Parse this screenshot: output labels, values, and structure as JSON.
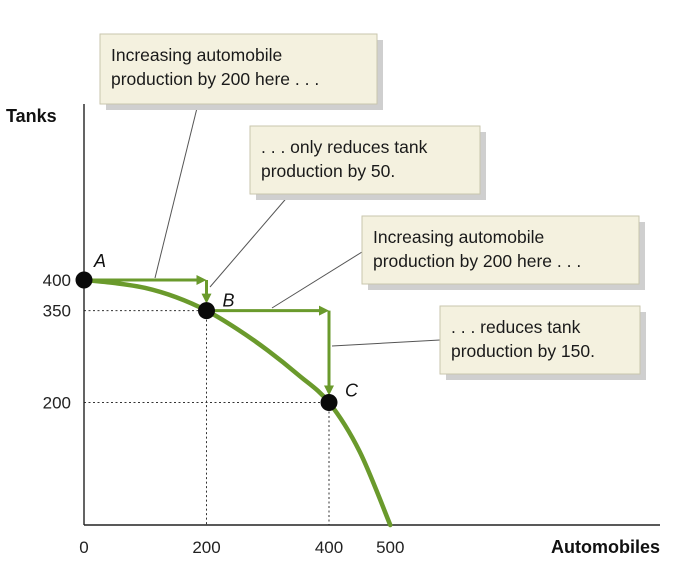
{
  "chart_data": {
    "type": "line",
    "xlabel": "Automobiles",
    "ylabel": "Tanks",
    "xlim": [
      0,
      520
    ],
    "ylim": [
      0,
      400
    ],
    "x_ticks": [
      {
        "value": 0,
        "label": "0"
      },
      {
        "value": 200,
        "label": "200"
      },
      {
        "value": 400,
        "label": "400"
      },
      {
        "value": 500,
        "label": "500"
      }
    ],
    "y_ticks": [
      {
        "value": 400,
        "label": "400"
      },
      {
        "value": 350,
        "label": "350"
      },
      {
        "value": 200,
        "label": "200"
      }
    ],
    "curve": {
      "color": "#6a9a2c",
      "x": [
        0,
        50,
        100,
        150,
        200,
        250,
        300,
        350,
        400,
        450,
        500
      ],
      "y": [
        400,
        395,
        387,
        372,
        350,
        320,
        285,
        245,
        200,
        120,
        0
      ]
    },
    "points": [
      {
        "label": "A",
        "x": 0,
        "y": 400
      },
      {
        "label": "B",
        "x": 200,
        "y": 350
      },
      {
        "label": "C",
        "x": 400,
        "y": 200
      }
    ],
    "annotations": [
      {
        "lines": [
          "Increasing automobile",
          "production by 200 here . . ."
        ]
      },
      {
        "lines": [
          ". . . only reduces tank",
          "production by 50."
        ]
      },
      {
        "lines": [
          "Increasing automobile",
          "production by 200 here . . ."
        ]
      },
      {
        "lines": [
          ". . . reduces tank",
          "production by 150."
        ]
      }
    ]
  }
}
